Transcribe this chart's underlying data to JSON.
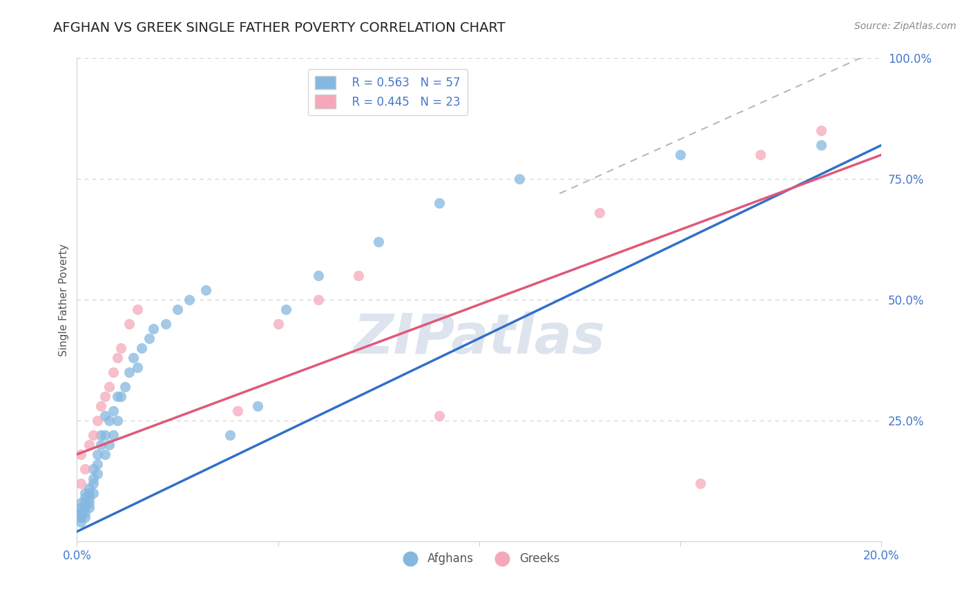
{
  "title": "AFGHAN VS GREEK SINGLE FATHER POVERTY CORRELATION CHART",
  "source": "Source: ZipAtlas.com",
  "ylabel": "Single Father Poverty",
  "xlim": [
    0.0,
    0.2
  ],
  "ylim": [
    0.0,
    1.0
  ],
  "legend_r_afghan": "R = 0.563",
  "legend_n_afghan": "N = 57",
  "legend_r_greek": "R = 0.445",
  "legend_n_greek": "N = 23",
  "afghan_color": "#85b8e0",
  "greek_color": "#f5a8ba",
  "afghan_line_color": "#3070c8",
  "greek_line_color": "#e05878",
  "dash_color": "#b0b8c8",
  "grid_color": "#d0d0d0",
  "title_color": "#222222",
  "source_color": "#888888",
  "tick_color": "#4477cc",
  "ylabel_color": "#555555",
  "watermark_text": "ZIPatlas",
  "watermark_color": "#dde4ee",
  "afghan_x": [
    0.001,
    0.001,
    0.001,
    0.001,
    0.001,
    0.001,
    0.001,
    0.002,
    0.002,
    0.002,
    0.002,
    0.002,
    0.002,
    0.003,
    0.003,
    0.003,
    0.003,
    0.003,
    0.004,
    0.004,
    0.004,
    0.004,
    0.005,
    0.005,
    0.005,
    0.006,
    0.006,
    0.007,
    0.007,
    0.007,
    0.008,
    0.008,
    0.009,
    0.009,
    0.01,
    0.01,
    0.011,
    0.012,
    0.013,
    0.014,
    0.015,
    0.016,
    0.018,
    0.019,
    0.022,
    0.025,
    0.028,
    0.032,
    0.038,
    0.045,
    0.052,
    0.06,
    0.075,
    0.09,
    0.11,
    0.15,
    0.185
  ],
  "afghan_y": [
    0.04,
    0.05,
    0.06,
    0.07,
    0.08,
    0.05,
    0.06,
    0.05,
    0.06,
    0.07,
    0.08,
    0.09,
    0.1,
    0.07,
    0.08,
    0.09,
    0.1,
    0.11,
    0.1,
    0.12,
    0.13,
    0.15,
    0.14,
    0.16,
    0.18,
    0.2,
    0.22,
    0.18,
    0.22,
    0.26,
    0.2,
    0.25,
    0.22,
    0.27,
    0.25,
    0.3,
    0.3,
    0.32,
    0.35,
    0.38,
    0.36,
    0.4,
    0.42,
    0.44,
    0.45,
    0.48,
    0.5,
    0.52,
    0.22,
    0.28,
    0.48,
    0.55,
    0.62,
    0.7,
    0.75,
    0.8,
    0.82
  ],
  "greek_x": [
    0.001,
    0.001,
    0.002,
    0.003,
    0.004,
    0.005,
    0.006,
    0.007,
    0.008,
    0.009,
    0.01,
    0.011,
    0.013,
    0.015,
    0.04,
    0.05,
    0.06,
    0.07,
    0.09,
    0.13,
    0.155,
    0.17,
    0.185
  ],
  "greek_y": [
    0.12,
    0.18,
    0.15,
    0.2,
    0.22,
    0.25,
    0.28,
    0.3,
    0.32,
    0.35,
    0.38,
    0.4,
    0.45,
    0.48,
    0.27,
    0.45,
    0.5,
    0.55,
    0.26,
    0.68,
    0.12,
    0.8,
    0.85
  ],
  "afghan_line_x0": 0.0,
  "afghan_line_y0": 0.02,
  "afghan_line_x1": 0.2,
  "afghan_line_y1": 0.82,
  "greek_line_x0": 0.0,
  "greek_line_y0": 0.18,
  "greek_line_x1": 0.2,
  "greek_line_y1": 0.8,
  "dash_line_x0": 0.12,
  "dash_line_y0": 0.72,
  "dash_line_x1": 0.2,
  "dash_line_y1": 1.02,
  "title_fontsize": 14,
  "label_fontsize": 11,
  "tick_fontsize": 12,
  "source_fontsize": 10,
  "legend_fontsize": 12,
  "marker_size": 120
}
